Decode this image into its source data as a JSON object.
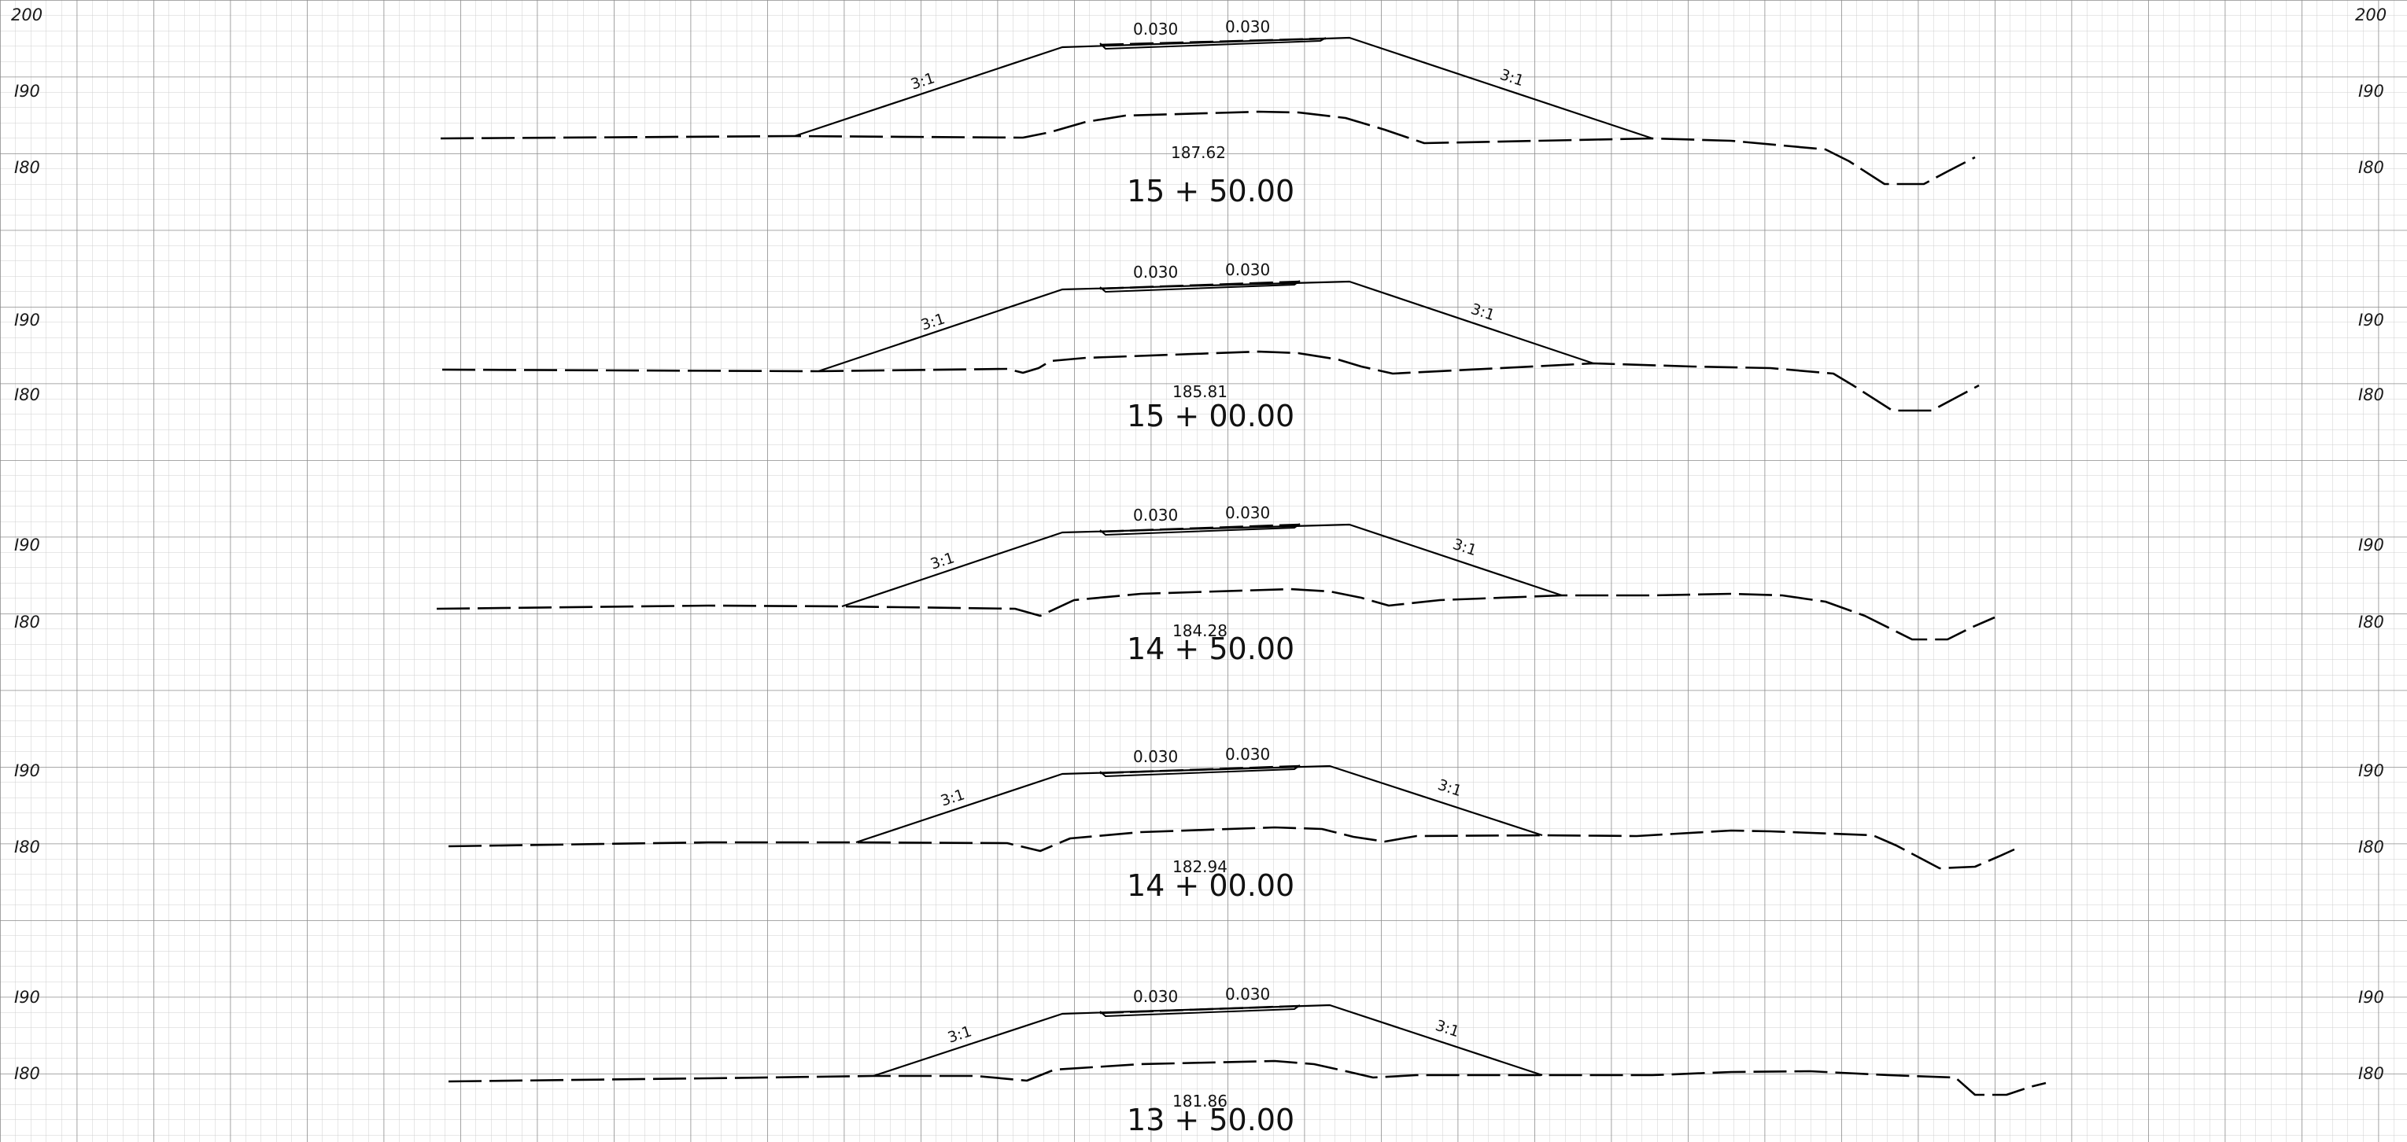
{
  "colors": {
    "paper": "#ffffff",
    "grid_minor": "#cfcfcf",
    "grid_major": "#8c8c8c",
    "ink": "#000000"
  },
  "elevation_labels": [
    "200",
    "I90",
    "I80"
  ],
  "sections": [
    {
      "station": "15 + 50.00",
      "elevation": "187.62",
      "slope_left": "3:1",
      "slope_right": "3:1",
      "grade_left": "0.030",
      "grade_right": "0.030",
      "left_labels": [
        "200",
        "I90",
        "I80"
      ],
      "right_labels": [
        "200",
        "I90",
        "I80"
      ]
    },
    {
      "station": "15 + 00.00",
      "elevation": "185.81",
      "slope_left": "3:1",
      "slope_right": "3:1",
      "grade_left": "0.030",
      "grade_right": "0.030",
      "left_labels": [
        "I90",
        "I80"
      ],
      "right_labels": [
        "I90",
        "I80"
      ]
    },
    {
      "station": "14 + 50.00",
      "elevation": "184.28",
      "slope_left": "3:1",
      "slope_right": "3:1",
      "grade_left": "0.030",
      "grade_right": "0.030",
      "left_labels": [
        "I90",
        "I80"
      ],
      "right_labels": [
        "I90",
        "I80"
      ]
    },
    {
      "station": "14 + 00.00",
      "elevation": "182.94",
      "slope_left": "3:1",
      "slope_right": "3:1",
      "grade_left": "0.030",
      "grade_right": "0.030",
      "left_labels": [
        "I90",
        "I80"
      ],
      "right_labels": [
        "I90",
        "I80"
      ]
    },
    {
      "station": "13 + 50.00",
      "elevation": "181.86",
      "slope_left": "3:1",
      "slope_right": "3:1",
      "grade_left": "0.030",
      "grade_right": "0.030",
      "left_labels": [
        "I90",
        "I80"
      ],
      "right_labels": [
        "I90",
        "I80"
      ]
    }
  ]
}
